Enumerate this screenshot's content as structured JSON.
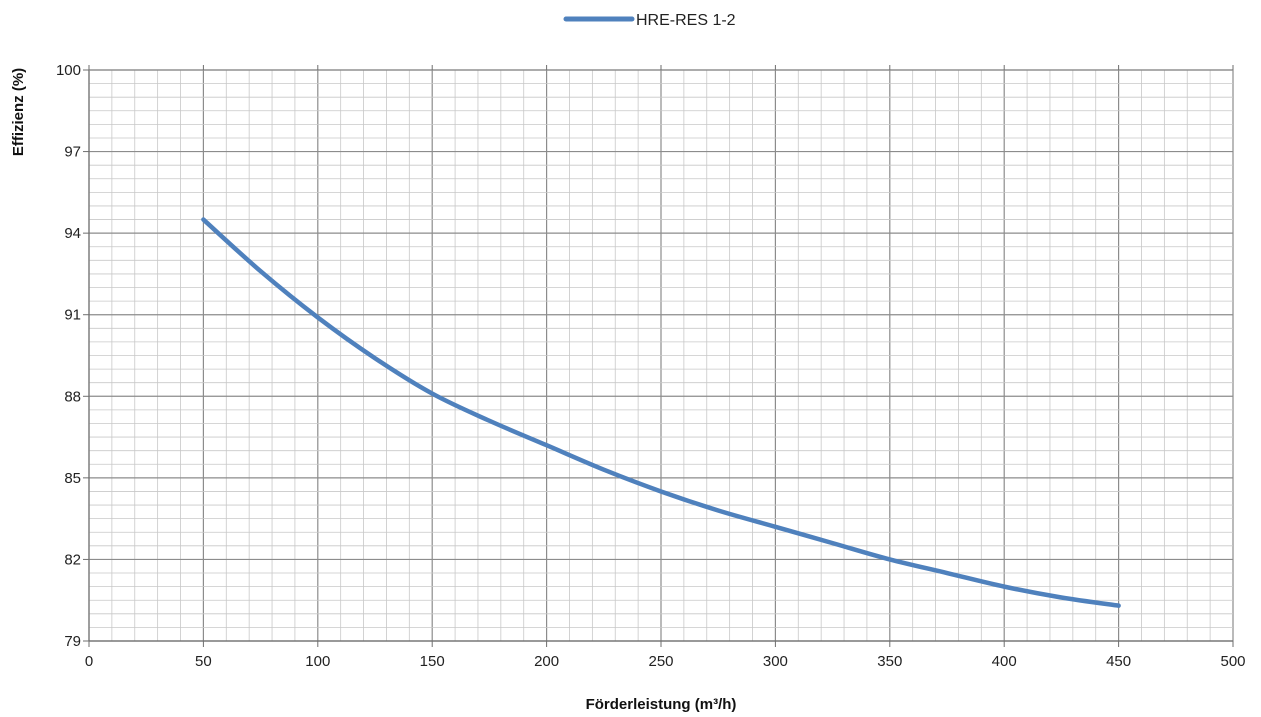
{
  "chart_data": {
    "type": "line",
    "title": "",
    "xlabel": "Förderleistung (m³/h)",
    "ylabel": "Effizienz (%)",
    "xlim": [
      0,
      500
    ],
    "ylim": [
      79,
      100
    ],
    "x_ticks": [
      0,
      50,
      100,
      150,
      200,
      250,
      300,
      350,
      400,
      450,
      500
    ],
    "y_ticks": [
      79,
      82,
      85,
      88,
      91,
      94,
      97,
      100
    ],
    "grid": true,
    "legend_position": "top-center",
    "series": [
      {
        "name": "HRE-RES 1-2",
        "color": "#4f81bd",
        "x": [
          50,
          75,
          100,
          125,
          150,
          175,
          200,
          225,
          250,
          275,
          300,
          325,
          350,
          375,
          400,
          425,
          450
        ],
        "y": [
          94.5,
          92.6,
          90.9,
          89.4,
          88.1,
          87.1,
          86.2,
          85.3,
          84.5,
          83.8,
          83.2,
          82.6,
          82.0,
          81.5,
          81.0,
          80.6,
          80.3
        ]
      }
    ]
  }
}
